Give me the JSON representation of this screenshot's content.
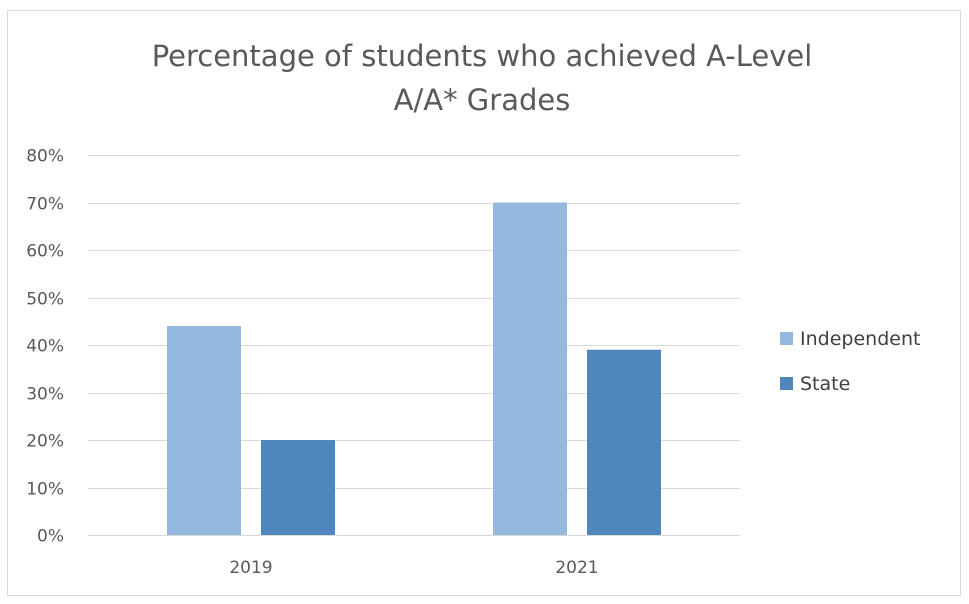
{
  "chart_data": {
    "type": "bar",
    "title_lines": [
      "Percentage of students who achieved A-Level",
      "A/A* Grades"
    ],
    "categories": [
      "2019",
      "2021"
    ],
    "series": [
      {
        "name": "Independent",
        "values": [
          44,
          70
        ],
        "color": "#95b8df"
      },
      {
        "name": "State",
        "values": [
          20,
          39
        ],
        "color": "#4f86bb"
      }
    ],
    "ylim": [
      0,
      80
    ],
    "yticks": [
      0,
      10,
      20,
      30,
      40,
      50,
      60,
      70,
      80
    ],
    "ytick_labels": [
      "0%",
      "10%",
      "20%",
      "30%",
      "40%",
      "50%",
      "60%",
      "70%",
      "80%"
    ],
    "grid": true,
    "legend_position": "right",
    "xlabel": "",
    "ylabel": ""
  }
}
